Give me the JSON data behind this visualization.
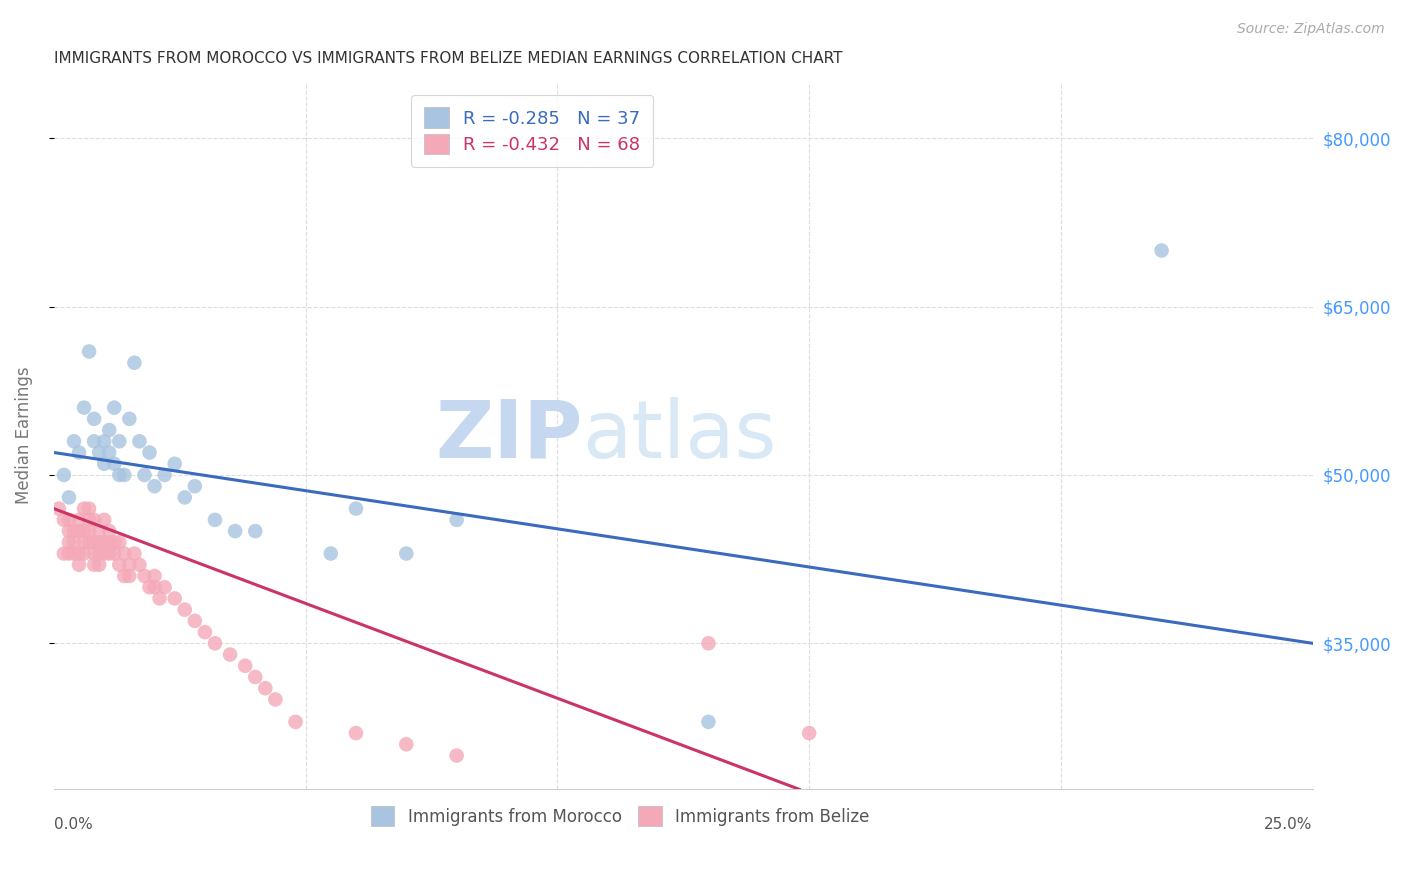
{
  "title": "IMMIGRANTS FROM MOROCCO VS IMMIGRANTS FROM BELIZE MEDIAN EARNINGS CORRELATION CHART",
  "source": "Source: ZipAtlas.com",
  "ylabel": "Median Earnings",
  "y_ticks": [
    35000,
    50000,
    65000,
    80000
  ],
  "y_tick_labels": [
    "$35,000",
    "$50,000",
    "$65,000",
    "$80,000"
  ],
  "xlim": [
    0.0,
    0.25
  ],
  "ylim": [
    22000,
    85000
  ],
  "legend_morocco": "Immigrants from Morocco",
  "legend_belize": "Immigrants from Belize",
  "r_morocco": -0.285,
  "n_morocco": 37,
  "r_belize": -0.432,
  "n_belize": 68,
  "color_morocco": "#a8c4e0",
  "color_belize": "#f4a8b8",
  "line_color_morocco": "#3a6bbf",
  "line_color_belize": "#cc3366",
  "title_color": "#333333",
  "source_color": "#aaaaaa",
  "axis_label_color": "#777777",
  "tick_color_right": "#4499ff",
  "grid_color": "#dddddd",
  "watermark_zip_color": "#c5d8ef",
  "watermark_atlas_color": "#c5d8ef",
  "blue_line_x": [
    0.0,
    0.25
  ],
  "blue_line_y": [
    52000,
    35000
  ],
  "pink_line_x": [
    0.0,
    0.148
  ],
  "pink_line_y": [
    47000,
    22000
  ],
  "morocco_x": [
    0.002,
    0.003,
    0.004,
    0.005,
    0.006,
    0.007,
    0.008,
    0.008,
    0.009,
    0.01,
    0.01,
    0.011,
    0.011,
    0.012,
    0.012,
    0.013,
    0.013,
    0.014,
    0.015,
    0.016,
    0.017,
    0.018,
    0.019,
    0.02,
    0.022,
    0.024,
    0.026,
    0.028,
    0.032,
    0.036,
    0.04,
    0.055,
    0.06,
    0.07,
    0.08,
    0.22,
    0.13
  ],
  "morocco_y": [
    50000,
    48000,
    53000,
    52000,
    56000,
    61000,
    55000,
    53000,
    52000,
    53000,
    51000,
    52000,
    54000,
    51000,
    56000,
    50000,
    53000,
    50000,
    55000,
    60000,
    53000,
    50000,
    52000,
    49000,
    50000,
    51000,
    48000,
    49000,
    46000,
    45000,
    45000,
    43000,
    47000,
    43000,
    46000,
    70000,
    28000
  ],
  "belize_x": [
    0.001,
    0.002,
    0.002,
    0.003,
    0.003,
    0.003,
    0.003,
    0.004,
    0.004,
    0.004,
    0.005,
    0.005,
    0.005,
    0.005,
    0.006,
    0.006,
    0.006,
    0.006,
    0.007,
    0.007,
    0.007,
    0.007,
    0.008,
    0.008,
    0.008,
    0.008,
    0.009,
    0.009,
    0.009,
    0.009,
    0.01,
    0.01,
    0.01,
    0.011,
    0.011,
    0.011,
    0.012,
    0.012,
    0.013,
    0.013,
    0.014,
    0.014,
    0.015,
    0.015,
    0.016,
    0.017,
    0.018,
    0.019,
    0.02,
    0.02,
    0.021,
    0.022,
    0.024,
    0.026,
    0.028,
    0.03,
    0.032,
    0.035,
    0.038,
    0.04,
    0.042,
    0.044,
    0.048,
    0.06,
    0.07,
    0.08,
    0.13,
    0.15
  ],
  "belize_y": [
    47000,
    46000,
    43000,
    46000,
    45000,
    44000,
    43000,
    45000,
    44000,
    43000,
    46000,
    45000,
    43000,
    42000,
    47000,
    45000,
    44000,
    43000,
    47000,
    46000,
    45000,
    44000,
    46000,
    44000,
    43000,
    42000,
    45000,
    44000,
    43000,
    42000,
    46000,
    44000,
    43000,
    45000,
    44000,
    43000,
    44000,
    43000,
    44000,
    42000,
    43000,
    41000,
    42000,
    41000,
    43000,
    42000,
    41000,
    40000,
    41000,
    40000,
    39000,
    40000,
    39000,
    38000,
    37000,
    36000,
    35000,
    34000,
    33000,
    32000,
    31000,
    30000,
    28000,
    27000,
    26000,
    25000,
    35000,
    27000
  ]
}
